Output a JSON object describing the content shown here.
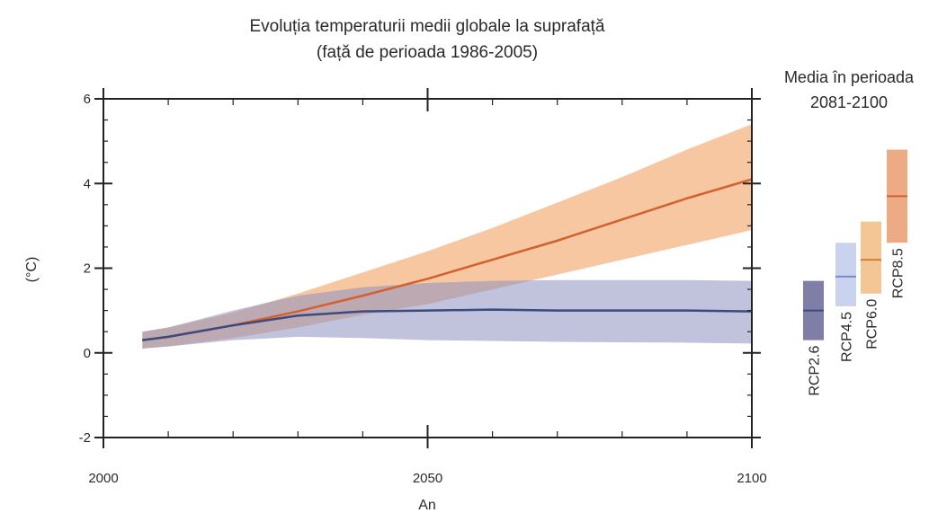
{
  "chart_data": {
    "type": "line",
    "title": [
      "Evoluția temperaturii medii globale la suprafață",
      "(față de perioada 1986-2005)"
    ],
    "xlabel": "An",
    "ylabel": "(°C)",
    "xlim": [
      2000,
      2100
    ],
    "ylim": [
      -2,
      6
    ],
    "x_ticks": [
      2000,
      2050,
      2100
    ],
    "y_ticks": [
      -2,
      0,
      2,
      4,
      6
    ],
    "series": [
      {
        "color": "#d4602e",
        "band_color": "#f4b98a",
        "x": [
          2006,
          2010,
          2020,
          2030,
          2040,
          2050,
          2060,
          2070,
          2080,
          2090,
          2100
        ],
        "values": [
          0.3,
          0.38,
          0.65,
          0.98,
          1.35,
          1.75,
          2.2,
          2.65,
          3.15,
          3.65,
          4.1
        ],
        "lower": [
          0.1,
          0.15,
          0.35,
          0.6,
          0.9,
          1.15,
          1.5,
          1.85,
          2.2,
          2.55,
          2.9
        ],
        "upper": [
          0.5,
          0.6,
          0.95,
          1.4,
          1.9,
          2.4,
          2.95,
          3.55,
          4.15,
          4.8,
          5.4
        ]
      },
      {
        "color": "#3c4a7d",
        "band_color": "#8e8fbf",
        "x": [
          2006,
          2010,
          2020,
          2030,
          2040,
          2050,
          2060,
          2070,
          2080,
          2090,
          2100
        ],
        "values": [
          0.3,
          0.38,
          0.65,
          0.88,
          0.98,
          1.0,
          1.02,
          1.0,
          1.0,
          1.0,
          0.98
        ],
        "lower": [
          0.1,
          0.15,
          0.3,
          0.38,
          0.35,
          0.3,
          0.28,
          0.26,
          0.25,
          0.24,
          0.22
        ],
        "upper": [
          0.5,
          0.6,
          1.0,
          1.35,
          1.55,
          1.65,
          1.7,
          1.72,
          1.72,
          1.72,
          1.7
        ]
      }
    ],
    "side_panel": {
      "title": [
        "Media în perioada",
        "2081-2100"
      ],
      "bars": [
        {
          "name": "RCP2.6",
          "mean": 1.0,
          "low": 0.3,
          "high": 1.7,
          "band_color": "#7e7ea6",
          "line_color": "#3c4a7d"
        },
        {
          "name": "RCP4.5",
          "mean": 1.8,
          "low": 1.1,
          "high": 2.6,
          "band_color": "#c9d2ee",
          "line_color": "#7a8ac4"
        },
        {
          "name": "RCP6.0",
          "mean": 2.2,
          "low": 1.4,
          "high": 3.1,
          "band_color": "#f4c595",
          "line_color": "#d47a3a"
        },
        {
          "name": "RCP8.5",
          "mean": 3.7,
          "low": 2.6,
          "high": 4.8,
          "band_color": "#ecab85",
          "line_color": "#d4602e"
        }
      ]
    },
    "grid": false,
    "legend": "none"
  }
}
